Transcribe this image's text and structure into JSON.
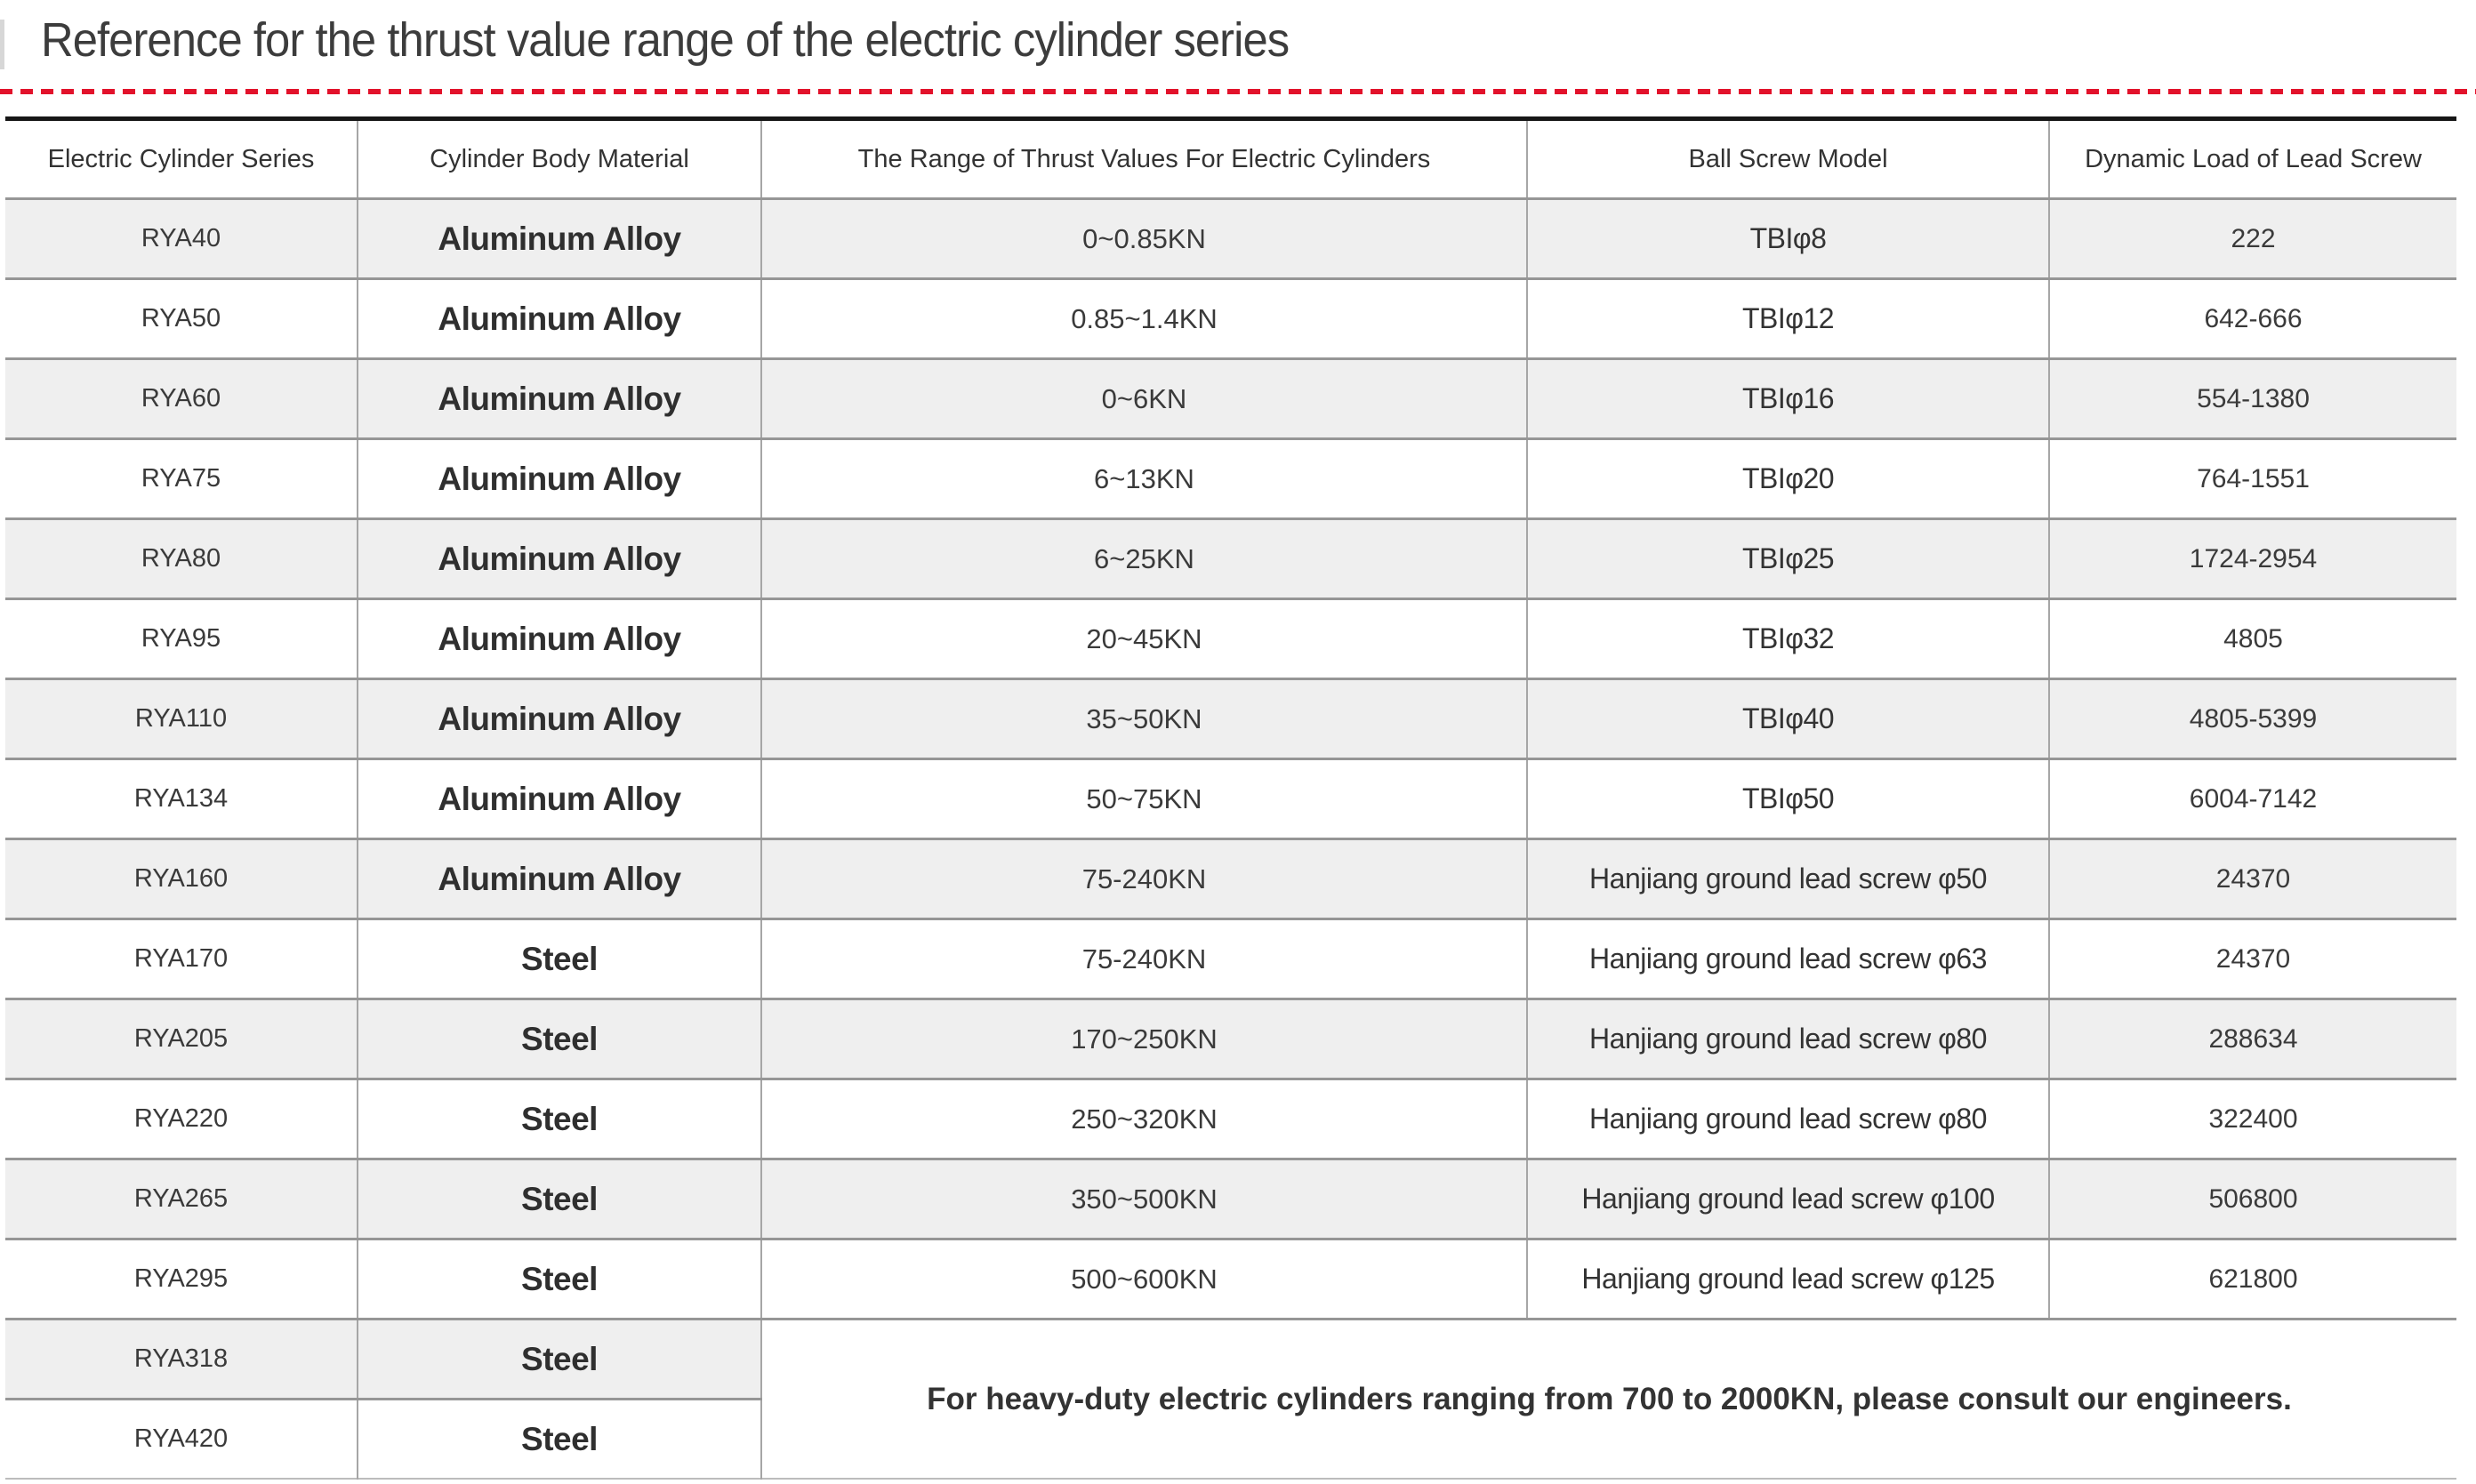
{
  "page": {
    "title": "Reference for the thrust value range of the electric cylinder series"
  },
  "colors": {
    "dashed_divider": "#e2122b",
    "row_shade": "#efefef",
    "table_top_border": "#161616",
    "grid_line": "#9a9a9a",
    "text": "#3a3a3a"
  },
  "table": {
    "headers": [
      "Electric Cylinder Series",
      "Cylinder Body Material",
      "The Range of Thrust Values For Electric Cylinders",
      "Ball Screw Model",
      "Dynamic Load of Lead Screw"
    ],
    "rows": [
      {
        "series": "RYA40",
        "material": "Aluminum Alloy",
        "thrust": "0~0.85KN",
        "screw": "TBIφ8",
        "load": "222"
      },
      {
        "series": "RYA50",
        "material": "Aluminum Alloy",
        "thrust": "0.85~1.4KN",
        "screw": "TBIφ12",
        "load": "642-666"
      },
      {
        "series": "RYA60",
        "material": "Aluminum Alloy",
        "thrust": "0~6KN",
        "screw": "TBIφ16",
        "load": "554-1380"
      },
      {
        "series": "RYA75",
        "material": "Aluminum Alloy",
        "thrust": "6~13KN",
        "screw": "TBIφ20",
        "load": "764-1551"
      },
      {
        "series": "RYA80",
        "material": "Aluminum Alloy",
        "thrust": "6~25KN",
        "screw": "TBIφ25",
        "load": "1724-2954"
      },
      {
        "series": "RYA95",
        "material": "Aluminum Alloy",
        "thrust": "20~45KN",
        "screw": "TBIφ32",
        "load": "4805"
      },
      {
        "series": "RYA110",
        "material": "Aluminum Alloy",
        "thrust": "35~50KN",
        "screw": "TBIφ40",
        "load": "4805-5399"
      },
      {
        "series": "RYA134",
        "material": "Aluminum Alloy",
        "thrust": "50~75KN",
        "screw": "TBIφ50",
        "load": "6004-7142"
      },
      {
        "series": "RYA160",
        "material": "Aluminum Alloy",
        "thrust": "75-240KN",
        "screw": "Hanjiang ground lead screw φ50",
        "load": "24370"
      },
      {
        "series": "RYA170",
        "material": "Steel",
        "thrust": "75-240KN",
        "screw": "Hanjiang ground lead screw φ63",
        "load": "24370"
      },
      {
        "series": "RYA205",
        "material": "Steel",
        "thrust": "170~250KN",
        "screw": "Hanjiang ground lead screw φ80",
        "load": "288634"
      },
      {
        "series": "RYA220",
        "material": "Steel",
        "thrust": "250~320KN",
        "screw": "Hanjiang ground lead screw φ80",
        "load": "322400"
      },
      {
        "series": "RYA265",
        "material": "Steel",
        "thrust": "350~500KN",
        "screw": "Hanjiang ground lead screw φ100",
        "load": "506800"
      },
      {
        "series": "RYA295",
        "material": "Steel",
        "thrust": "500~600KN",
        "screw": "Hanjiang ground lead screw φ125",
        "load": "621800"
      },
      {
        "series": "RYA318",
        "material": "Steel"
      },
      {
        "series": "RYA420",
        "material": "Steel"
      }
    ],
    "merged_note": "For heavy-duty electric cylinders ranging from 700 to 2000KN, please consult our engineers."
  }
}
